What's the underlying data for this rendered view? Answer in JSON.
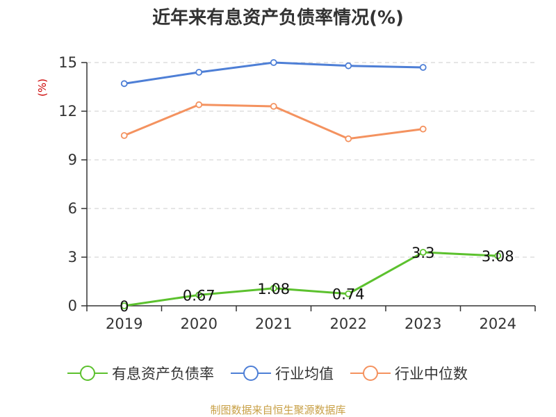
{
  "chart_data": {
    "type": "line",
    "title": "近年来有息资产负债率情况(%)",
    "y_unit": "(%)",
    "categories": [
      "2019",
      "2020",
      "2021",
      "2022",
      "2023",
      "2024"
    ],
    "ylim": [
      0,
      15
    ],
    "yticks": [
      "0",
      "3",
      "6",
      "9",
      "12",
      "15"
    ],
    "grid": true,
    "legend_position": "bottom",
    "series": [
      {
        "name": "有息资产负债率",
        "color": "#5cc12e",
        "values": [
          0,
          0.67,
          1.08,
          0.74,
          3.3,
          3.08
        ],
        "labels": [
          "0",
          "0.67",
          "1.08",
          "0.74",
          "3.3",
          "3.08"
        ]
      },
      {
        "name": "行业均值",
        "color": "#4e7fd6",
        "values": [
          13.7,
          14.4,
          15.0,
          14.8,
          14.7,
          null
        ]
      },
      {
        "name": "行业中位数",
        "color": "#f4925f",
        "values": [
          10.5,
          12.4,
          12.3,
          10.3,
          10.9,
          null
        ]
      }
    ]
  },
  "source_text": "制图数据来自恒生聚源数据库",
  "colors": {
    "unit_label": "#cc0000",
    "source_text": "#c8a046",
    "axis": "#333333",
    "grid": "#cccccc"
  }
}
